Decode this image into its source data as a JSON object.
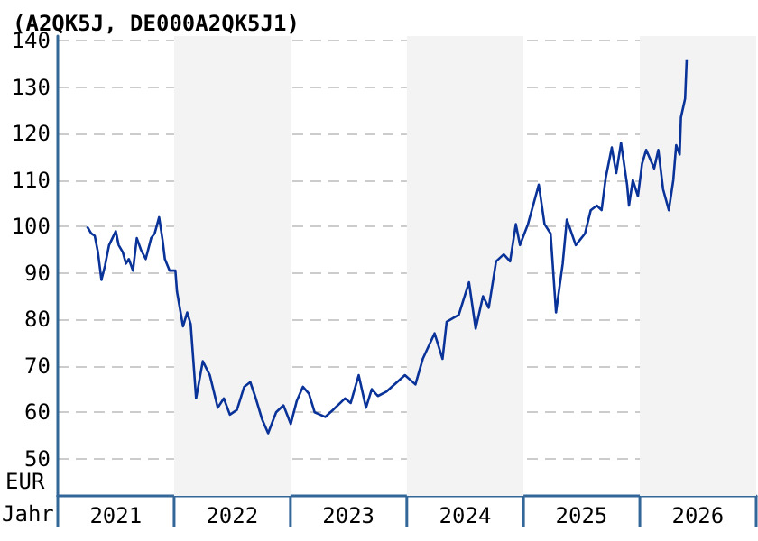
{
  "chart_data": {
    "type": "line",
    "title": "(A2QK5J, DE000A2QK5J1)",
    "xlabel": "Jahr",
    "ylabel": "EUR",
    "x": [
      "2021-04-03",
      "2021-04-16",
      "2021-04-27",
      "2021-05-07",
      "2021-05-18",
      "2021-05-29",
      "2021-06-11",
      "2021-07-02",
      "2021-07-11",
      "2021-07-24",
      "2021-08-03",
      "2021-08-12",
      "2021-08-25",
      "2021-09-06",
      "2021-09-19",
      "2021-10-04",
      "2021-10-21",
      "2021-11-01",
      "2021-11-15",
      "2021-11-26",
      "2021-12-03",
      "2021-12-18",
      "2022-01-05",
      "2022-01-10",
      "2022-01-29",
      "2022-02-11",
      "2022-02-22",
      "2022-03-11",
      "2022-04-01",
      "2022-04-23",
      "2022-05-18",
      "2022-06-06",
      "2022-06-25",
      "2022-07-17",
      "2022-08-09",
      "2022-08-28",
      "2022-09-12",
      "2022-10-04",
      "2022-10-23",
      "2022-11-17",
      "2022-12-10",
      "2023-01-02",
      "2023-01-21",
      "2023-02-09",
      "2023-02-28",
      "2023-03-18",
      "2023-04-20",
      "2023-05-14",
      "2023-06-21",
      "2023-07-09",
      "2023-08-03",
      "2023-08-26",
      "2023-09-13",
      "2023-10-02",
      "2023-10-30",
      "2023-12-26",
      "2024-01-28",
      "2024-02-20",
      "2024-03-28",
      "2024-04-22",
      "2024-05-05",
      "2024-06-12",
      "2024-07-14",
      "2024-08-04",
      "2024-08-27",
      "2024-09-14",
      "2024-10-07",
      "2024-10-31",
      "2024-11-20",
      "2024-12-08",
      "2024-12-21",
      "2025-01-15",
      "2025-02-18",
      "2025-03-08",
      "2025-03-27",
      "2025-04-13",
      "2025-05-04",
      "2025-05-17",
      "2025-06-14",
      "2025-07-13",
      "2025-07-31",
      "2025-08-19",
      "2025-09-03",
      "2025-09-16",
      "2025-10-05",
      "2025-10-19",
      "2025-11-03",
      "2025-11-22",
      "2025-11-28",
      "2025-12-10",
      "2025-12-26",
      "2026-01-08",
      "2026-01-21",
      "2026-02-15",
      "2026-02-28",
      "2026-03-15",
      "2026-04-02",
      "2026-04-16",
      "2026-04-25",
      "2026-05-06",
      "2026-05-10",
      "2026-05-23",
      "2026-05-28"
    ],
    "series": [
      {
        "color": "#0a3399",
        "values": [
          100,
          98.5,
          98,
          94.5,
          88.5,
          91.5,
          96,
          99,
          96,
          94.5,
          92,
          93,
          90.5,
          97.5,
          95,
          93,
          97.5,
          98.5,
          102,
          97,
          93,
          90.5,
          90.5,
          86,
          78.5,
          81.5,
          79,
          63,
          71,
          68,
          61,
          63,
          59.5,
          60.5,
          65.5,
          66.5,
          63.5,
          58.5,
          55.5,
          60,
          61.5,
          57.5,
          62.5,
          65.5,
          64,
          60,
          59,
          60.5,
          63,
          62,
          68,
          61,
          65,
          63.5,
          64.5,
          68,
          66,
          71.5,
          77,
          71.5,
          79.5,
          81,
          88,
          78,
          85,
          82.5,
          92.5,
          94,
          92.5,
          100.5,
          96,
          100.5,
          109,
          100.5,
          98.5,
          81.5,
          92,
          101.5,
          96,
          98.5,
          103.5,
          104.5,
          103.5,
          110.5,
          117,
          111.5,
          118,
          109,
          104.5,
          110,
          106.5,
          113.5,
          116.5,
          112.5,
          116.5,
          108,
          103.5,
          110,
          117.5,
          115.5,
          123.5,
          127.5,
          136
        ]
      }
    ],
    "xlim": [
      "2021-01-01",
      "2027-01-01"
    ],
    "xticks": [
      {
        "value": "2021-07-02",
        "label": "2021"
      },
      {
        "value": "2022-07-02",
        "label": "2022"
      },
      {
        "value": "2023-07-02",
        "label": "2023"
      },
      {
        "value": "2024-07-02",
        "label": "2024"
      },
      {
        "value": "2025-07-02",
        "label": "2025"
      },
      {
        "value": "2026-07-02",
        "label": "2026"
      }
    ],
    "ylim": [
      42,
      141
    ],
    "yticks": [
      50,
      60,
      70,
      80,
      90,
      100,
      110,
      120,
      130,
      140
    ],
    "bands": [
      {
        "axis": "x",
        "from": "2022-01-01",
        "to": "2023-01-01",
        "color": "#f3f3f3"
      },
      {
        "axis": "x",
        "from": "2024-01-01",
        "to": "2025-01-01",
        "color": "#f3f3f3"
      },
      {
        "axis": "x",
        "from": "2026-01-01",
        "to": "2027-01-01",
        "color": "#f3f3f3"
      }
    ],
    "grid": "y",
    "line_style": "solid",
    "marker": "none"
  }
}
